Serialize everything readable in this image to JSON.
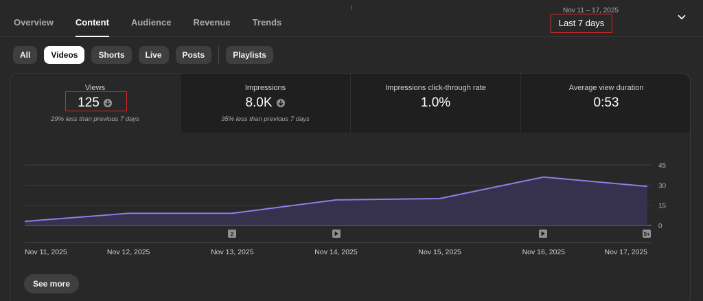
{
  "nav": {
    "tabs": [
      {
        "label": "Overview"
      },
      {
        "label": "Content"
      },
      {
        "label": "Audience"
      },
      {
        "label": "Revenue"
      },
      {
        "label": "Trends"
      }
    ],
    "active_tab": "Content"
  },
  "date_range": {
    "range": "Nov 11 – 17, 2025",
    "label": "Last 7 days"
  },
  "chips": [
    {
      "label": "All"
    },
    {
      "label": "Videos"
    },
    {
      "label": "Shorts"
    },
    {
      "label": "Live"
    },
    {
      "label": "Posts"
    },
    {
      "label": "Playlists"
    }
  ],
  "active_chip": "Videos",
  "metrics": [
    {
      "label": "Views",
      "value": "125",
      "note": "29% less than previous 7 days",
      "trend": "down"
    },
    {
      "label": "Impressions",
      "value": "8.0K",
      "note": "35% less than previous 7 days",
      "trend": "down"
    },
    {
      "label": "Impressions click-through rate",
      "value": "1.0%",
      "note": "",
      "trend": ""
    },
    {
      "label": "Average view duration",
      "value": "0:53",
      "note": "",
      "trend": ""
    }
  ],
  "colors": {
    "accent_line": "#8b7fe8",
    "area_fill": "#36324d",
    "highlight_box": "#e0252a"
  },
  "icons": {
    "trend_down": "arrow-down-circle-icon",
    "dropdown": "chevron-down-icon",
    "video_marker": "play-icon"
  },
  "chart_data": {
    "type": "area",
    "x": [
      "Nov 11, 2025",
      "Nov 12, 2025",
      "Nov 13, 2025",
      "Nov 14, 2025",
      "Nov 15, 2025",
      "Nov 16, 2025",
      "Nov 17, 2025"
    ],
    "series": [
      {
        "values": [
          3,
          9,
          9,
          19,
          20,
          36,
          29
        ]
      }
    ],
    "yticks": [
      0,
      15,
      30,
      45
    ],
    "ylim": [
      0,
      45
    ],
    "grid": true,
    "markers": [
      {
        "after": "Nov 12, 2025",
        "label": "2"
      },
      {
        "after": "Nov 13, 2025",
        "label": "play"
      },
      {
        "after": "Nov 15, 2025",
        "label": "play"
      },
      {
        "after": "Nov 16, 2025",
        "label": "9+"
      }
    ]
  },
  "see_more": "See more"
}
